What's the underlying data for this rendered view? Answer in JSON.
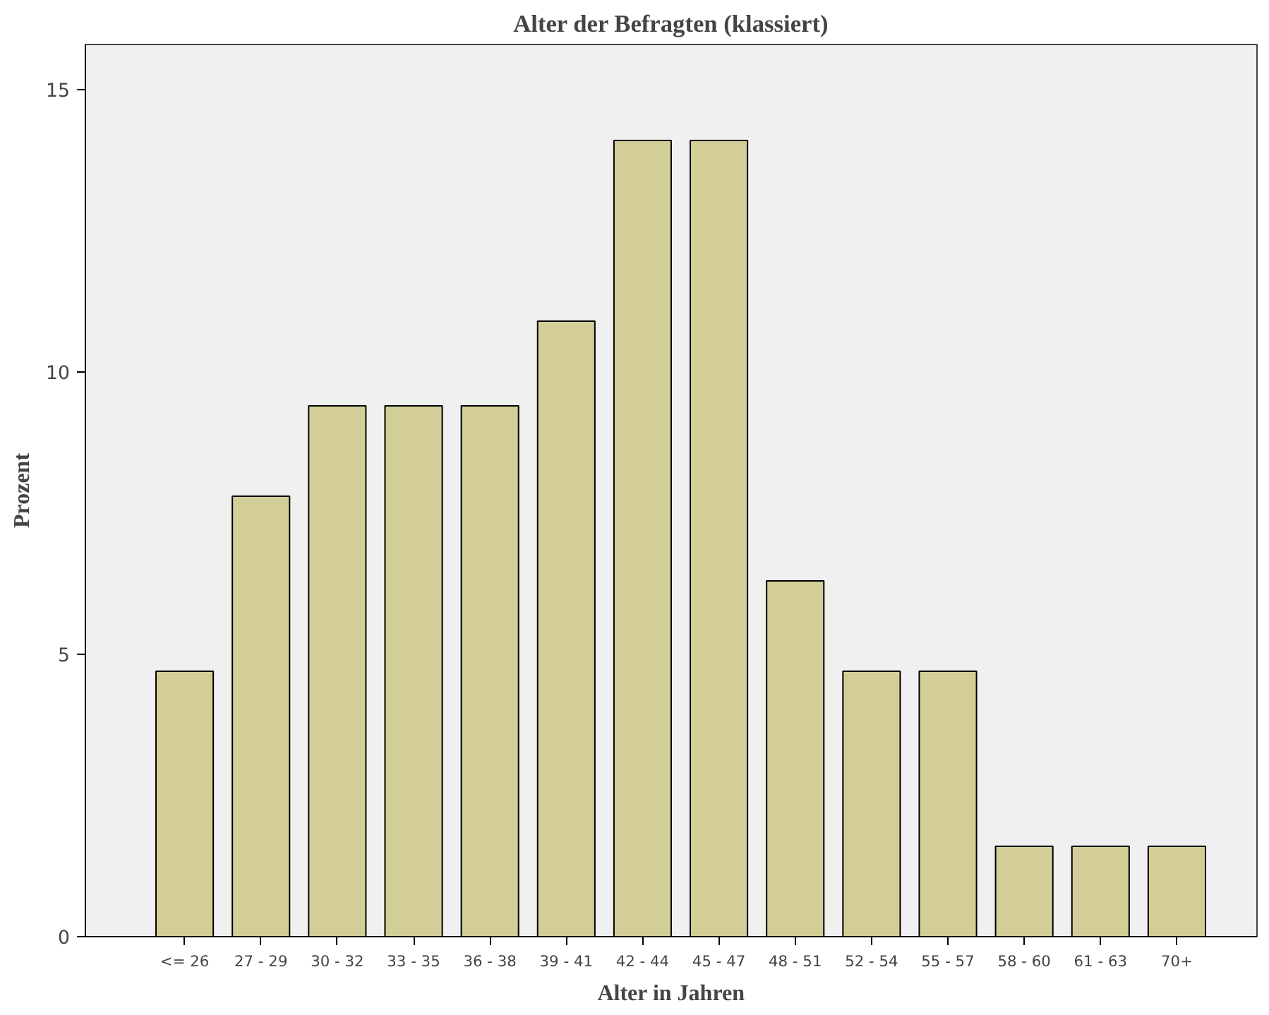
{
  "chart_data": {
    "type": "bar",
    "title": "Alter der Befragten (klassiert)",
    "xlabel": "Alter in Jahren",
    "ylabel": "Prozent",
    "categories": [
      "<= 26",
      "27 - 29",
      "30 - 32",
      "33 - 35",
      "36 - 38",
      "39 - 41",
      "42 - 44",
      "45 - 47",
      "48 - 51",
      "52 - 54",
      "55 - 57",
      "58 - 60",
      "61 - 63",
      "70+"
    ],
    "values": [
      4.7,
      7.8,
      9.4,
      9.4,
      9.4,
      10.9,
      14.1,
      14.1,
      6.3,
      4.7,
      4.7,
      1.6,
      1.6,
      1.6
    ],
    "color": "#d3ce97",
    "ylim": [
      0,
      15.8
    ],
    "yticks": [
      0,
      5,
      10,
      15
    ],
    "grid": false
  }
}
